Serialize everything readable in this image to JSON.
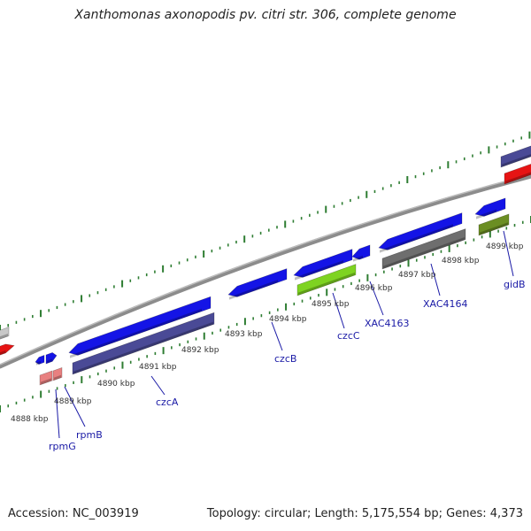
{
  "header": {
    "title": "Xanthomonas axonopodis pv. citri str. 306, complete genome"
  },
  "footer": {
    "accession": "Accession: NC_003919",
    "summary": "Topology: circular; Length: 5,175,554 bp; Genes: 4,373"
  },
  "map": {
    "colors": {
      "backbone": "#8c8c8c",
      "tick_green": "#2e7d32",
      "gene_blue": "#1414e6",
      "gene_navy": "#4a4a96",
      "gene_red": "#e61414",
      "gene_gray": "#6e6e6e",
      "gene_lime": "#7ed321",
      "gene_olive": "#6b8e23",
      "gene_pink": "#e88080",
      "leader_line": "#1a1aa6"
    },
    "kbp_labels": [
      "4888 kbp",
      "4889 kbp",
      "4890 kbp",
      "4891 kbp",
      "4892 kbp",
      "4893 kbp",
      "4894 kbp",
      "4895 kbp",
      "4896 kbp",
      "4897 kbp",
      "4898 kbp",
      "4899 kbp"
    ],
    "gene_labels": [
      "rpmG",
      "rpmB",
      "czcA",
      "czcB",
      "czcC",
      "XAC4163",
      "XAC4164",
      "gidB"
    ]
  }
}
